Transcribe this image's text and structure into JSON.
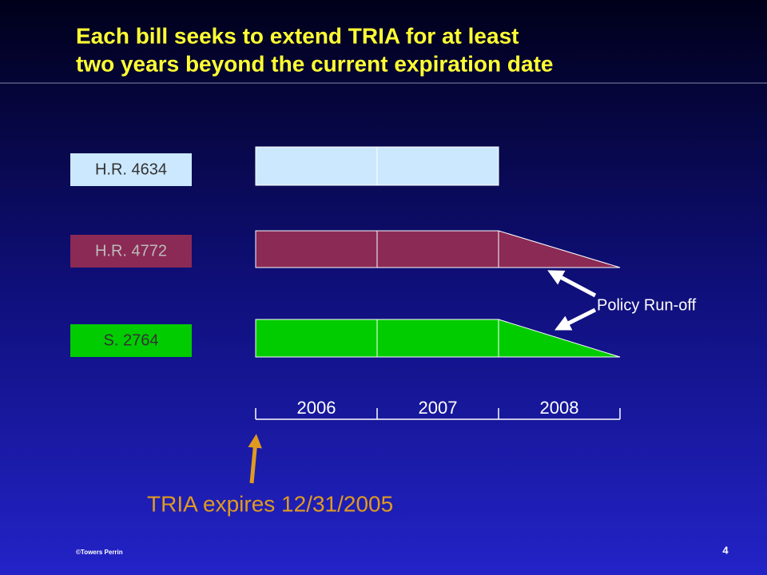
{
  "header": {
    "title_lines": [
      "Each bill seeks to extend TRIA for at least",
      "two years beyond the current expiration date"
    ]
  },
  "bills": [
    {
      "label": "H.R. 4634"
    },
    {
      "label": "H.R. 4772"
    },
    {
      "label": "S. 2764"
    }
  ],
  "years": [
    "2006",
    "2007",
    "2008"
  ],
  "annotations": {
    "runoff": "Policy Run-off",
    "expiry": "TRIA expires 12/31/2005"
  },
  "footer": {
    "copyright": "©Towers Perrin",
    "page": "4"
  }
}
